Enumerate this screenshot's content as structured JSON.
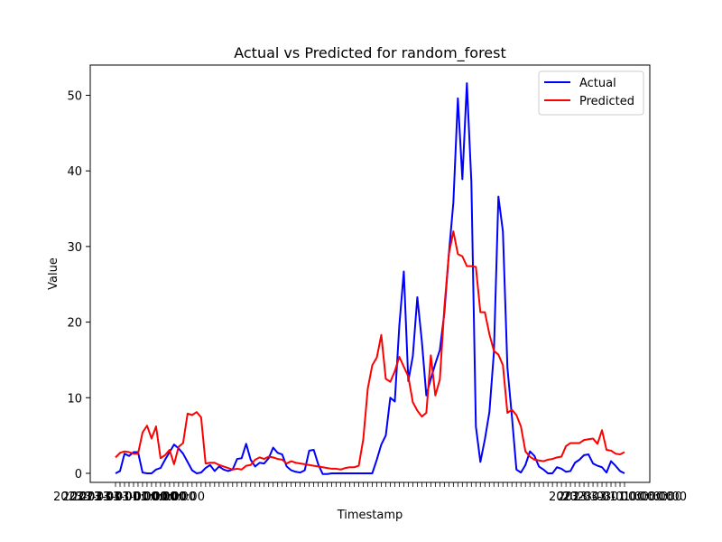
{
  "chart_data": {
    "type": "line",
    "title": "Actual vs Predicted for random_forest",
    "xlabel": "Timestamp",
    "ylabel": "Value",
    "ylim": [
      -1.2,
      54
    ],
    "yticks": [
      0,
      10,
      20,
      30,
      40,
      50
    ],
    "x_tick_text": "2023-03-01 00:00:00",
    "legend_position": "top-right",
    "series": [
      {
        "name": "Actual",
        "color": "#0000ff",
        "values": [
          0,
          0.3,
          2.6,
          2.3,
          2.8,
          2.8,
          0.1,
          0,
          0,
          0.5,
          0.7,
          1.8,
          2.8,
          3.8,
          3.3,
          2.6,
          1.5,
          0.4,
          0,
          0.1,
          0.7,
          1.1,
          0.3,
          0.9,
          0.5,
          0.3,
          0.5,
          1.9,
          2.0,
          3.9,
          1.8,
          0.9,
          1.4,
          1.3,
          2.0,
          3.4,
          2.7,
          2.5,
          0.9,
          0.4,
          0.2,
          0.1,
          0.4,
          3.0,
          3.1,
          1.2,
          -0.1,
          -0.1,
          0,
          0,
          0,
          0,
          0,
          0,
          0,
          0,
          0,
          0,
          1.8,
          3.8,
          5.0,
          10.0,
          9.5,
          19.5,
          26.7,
          12.2,
          15.5,
          23.3,
          17.5,
          10.3,
          12.5,
          14.5,
          16.3,
          21.2,
          29.0,
          35.8,
          49.6,
          38.9,
          51.6,
          38.5,
          6.2,
          1.5,
          4.5,
          8.1,
          16.0,
          36.6,
          32.0,
          14.0,
          7.5,
          0.5,
          0.1,
          1.1,
          2.9,
          2.3,
          0.9,
          0.5,
          0,
          0,
          0.8,
          0.6,
          0.2,
          0.3,
          1.4,
          1.8,
          2.4,
          2.5,
          1.3,
          1.0,
          0.8,
          0.1,
          1.6,
          1.0,
          0.3,
          0
        ],
        "note": ""
      },
      {
        "name": "Predicted",
        "color": "#ff0000",
        "values": [
          2.1,
          2.7,
          2.9,
          2.8,
          2.6,
          2.6,
          5.4,
          6.3,
          4.6,
          6.2,
          2.0,
          2.4,
          3.1,
          1.2,
          3.5,
          4.0,
          7.9,
          7.7,
          8.1,
          7.4,
          1.3,
          1.4,
          1.4,
          1.1,
          0.9,
          0.7,
          0.5,
          0.6,
          0.5,
          1.0,
          1.1,
          1.8,
          2.1,
          1.9,
          2.2,
          2.1,
          1.9,
          1.8,
          1.3,
          1.6,
          1.4,
          1.3,
          1.2,
          1.1,
          1.0,
          0.9,
          0.8,
          0.7,
          0.6,
          0.6,
          0.5,
          0.7,
          0.8,
          0.8,
          1.0,
          4.5,
          11.2,
          14.3,
          15.3,
          18.3,
          12.5,
          12.1,
          13.5,
          15.4,
          14.1,
          12.8,
          9.4,
          8.3,
          7.5,
          8.0,
          15.6,
          10.3,
          12.4,
          21.9,
          29.0,
          32.0,
          29.0,
          28.7,
          27.4,
          27.4,
          27.3,
          21.3,
          21.3,
          18.4,
          16.2,
          15.7,
          14.3,
          8.0,
          8.4,
          7.7,
          6.2,
          2.9,
          2.2,
          1.8,
          1.7,
          1.6,
          1.8,
          1.9,
          2.1,
          2.2,
          3.6,
          4.0,
          4.0,
          4.0,
          4.4,
          4.5,
          4.6,
          3.9,
          5.7,
          3.1,
          3.0,
          2.6,
          2.5,
          2.8
        ],
        "note": ""
      }
    ]
  }
}
